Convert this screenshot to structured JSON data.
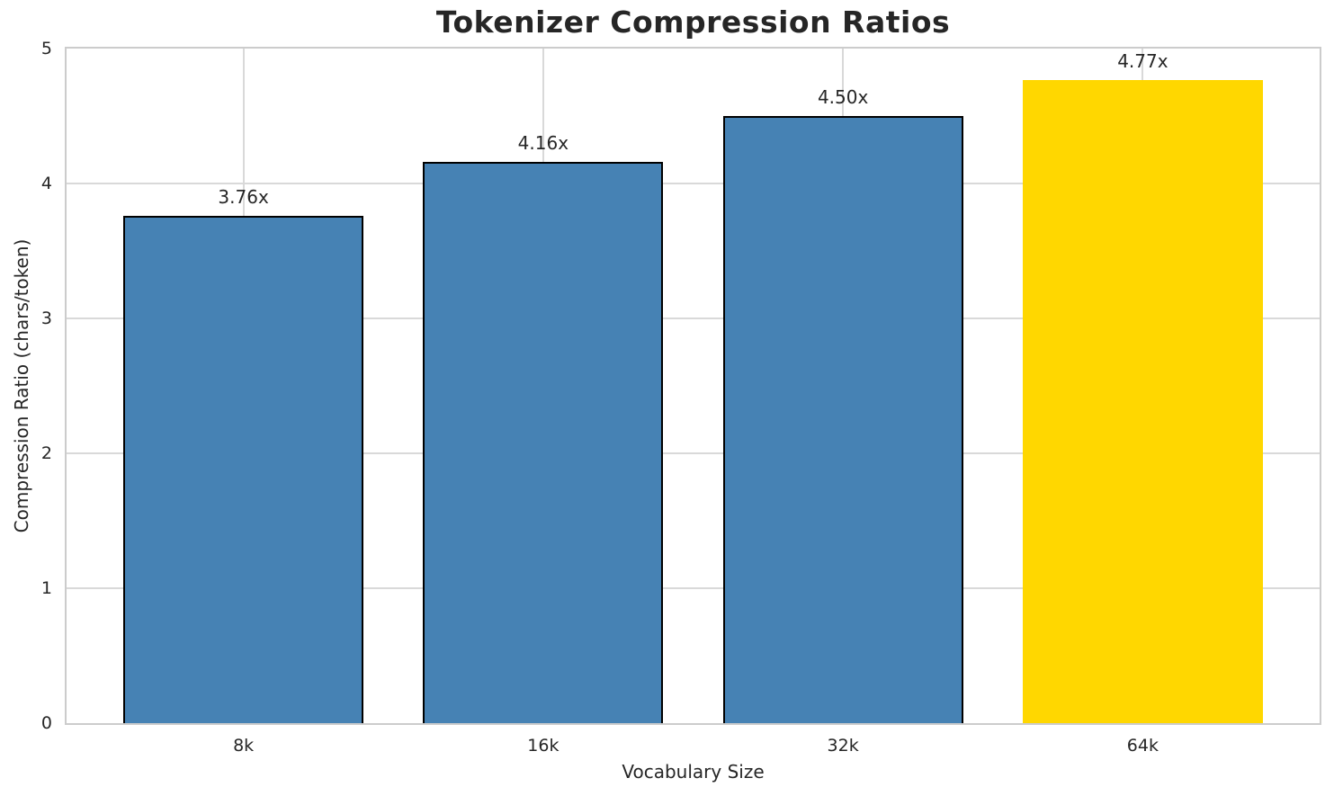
{
  "chart_data": {
    "type": "bar",
    "title": "Tokenizer Compression Ratios",
    "xlabel": "Vocabulary Size",
    "ylabel": "Compression Ratio (chars/token)",
    "categories": [
      "8k",
      "16k",
      "32k",
      "64k"
    ],
    "values": [
      3.76,
      4.16,
      4.5,
      4.77
    ],
    "bar_labels": [
      "3.76x",
      "4.16x",
      "4.50x",
      "4.77x"
    ],
    "ylim": [
      0,
      5
    ],
    "yticks": [
      "0",
      "1",
      "2",
      "3",
      "4",
      "5"
    ],
    "grid": "on",
    "legend": "none",
    "bar_colors": [
      "#4682B4",
      "#4682B4",
      "#4682B4",
      "#FFD700"
    ],
    "bar_edge_colors": [
      "#000000",
      "#000000",
      "#000000",
      "none"
    ],
    "highlight_index": 3,
    "grid_color": "#d9d9d9",
    "spine_color": "#cccccc",
    "text_color": "#262626"
  }
}
